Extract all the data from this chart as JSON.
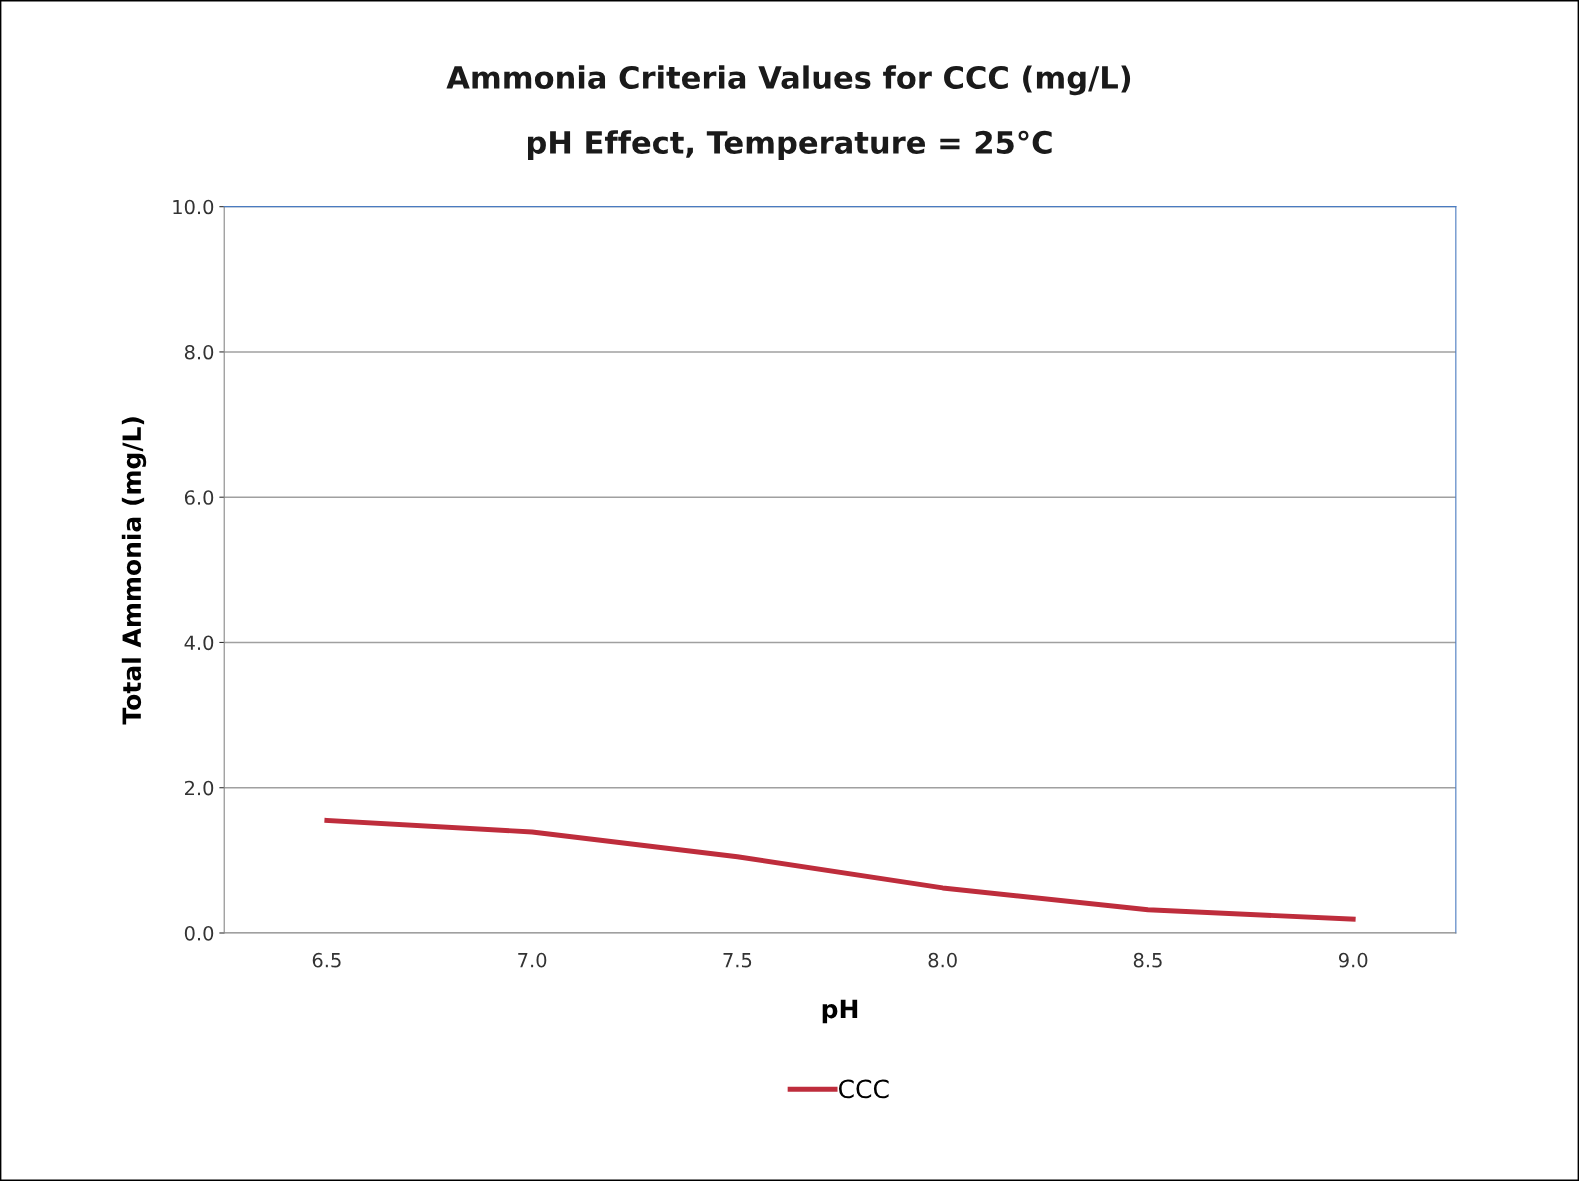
{
  "chart_data": {
    "type": "line",
    "title": "Ammonia Criteria Values for CCC (mg/L)",
    "subtitle": "pH Effect, Temperature = 25°C",
    "xlabel": "pH",
    "ylabel": "Total Ammonia (mg/L)",
    "categories": [
      "6.5",
      "7.0",
      "7.5",
      "8.0",
      "8.5",
      "9.0"
    ],
    "series": [
      {
        "name": "CCC",
        "color": "#be2d3c",
        "values": [
          1.55,
          1.39,
          1.05,
          0.62,
          0.32,
          0.19
        ]
      }
    ],
    "ylim": [
      0,
      10
    ],
    "yticks": [
      {
        "value": 0,
        "label": "0.0"
      },
      {
        "value": 2,
        "label": "2.0"
      },
      {
        "value": 4,
        "label": "4.0"
      },
      {
        "value": 6,
        "label": "6.0"
      },
      {
        "value": 8,
        "label": "8.0"
      },
      {
        "value": 10,
        "label": "10.0"
      }
    ],
    "grid": "y",
    "legend": "bottom",
    "marker": "none",
    "line_style": "solid"
  }
}
